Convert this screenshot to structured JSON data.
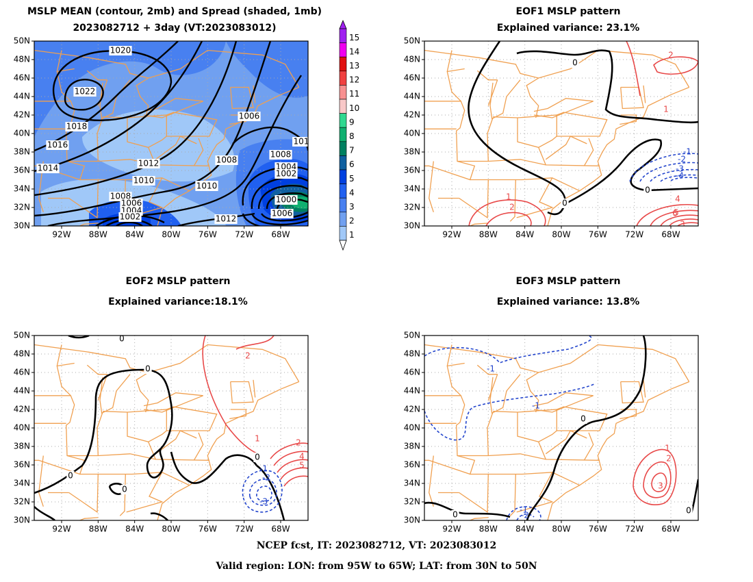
{
  "colors": {
    "coast": "#f0a050",
    "grid": "#aaaaaa",
    "positive": "#e84848",
    "negative": "#2244cc",
    "zero": "#000000"
  },
  "axes": {
    "lat_labels": [
      "50N",
      "48N",
      "46N",
      "44N",
      "42N",
      "40N",
      "38N",
      "36N",
      "34N",
      "32N",
      "30N"
    ],
    "lon_labels": [
      "92W",
      "88W",
      "84W",
      "80W",
      "76W",
      "72W",
      "68W"
    ]
  },
  "panels": {
    "mean": {
      "title": "MSLP MEAN (contour, 2mb) and Spread (shaded, 1mb)",
      "subtitle": "2023082712 + 3day (VT:2023083012)",
      "contour_labels": [
        "1020",
        "1022",
        "1018",
        "1016",
        "1014",
        "1012",
        "1010",
        "1008",
        "1006",
        "1004",
        "1002",
        "1006",
        "1012",
        "1010",
        "1008",
        "1006",
        "1008",
        "1004",
        "1002",
        "1000",
        "1006",
        "101"
      ]
    },
    "eof1": {
      "title": "EOF1 MSLP pattern",
      "subtitle": "Explained variance: 23.1%",
      "labels": [
        "0",
        "0",
        "0",
        "0",
        "2",
        "1",
        "-1",
        "-2",
        "-3",
        "-4",
        "2",
        "1",
        "4",
        "5",
        "6",
        "3"
      ]
    },
    "eof2": {
      "title": "EOF2 MSLP pattern",
      "subtitle": "Explained variance:18.1%",
      "labels": [
        "0",
        "0",
        "0",
        "0",
        "0",
        "2",
        "1",
        "2",
        "4",
        "5",
        "-1",
        "-2",
        "-3"
      ]
    },
    "eof3": {
      "title": "EOF3 MSLP pattern",
      "subtitle": "Explained variance: 13.8%",
      "labels": [
        "-1",
        "-1",
        "0",
        "0",
        "0",
        "-1",
        "-2",
        "1",
        "2",
        "3"
      ]
    }
  },
  "colorbar": {
    "labels": [
      "15",
      "14",
      "13",
      "12",
      "11",
      "10",
      "9",
      "8",
      "7",
      "6",
      "5",
      "4",
      "3",
      "2",
      "1"
    ],
    "colors": [
      "#a020f0",
      "#f000f0",
      "#e01010",
      "#f04040",
      "#f89090",
      "#f8c8c8",
      "#30d890",
      "#10b070",
      "#008060",
      "#1060a0",
      "#0040e0",
      "#2060f0",
      "#4880f0",
      "#70a0f0",
      "#a0c8f8"
    ]
  },
  "footer": {
    "line1": "NCEP fcst, IT: 2023082712, VT: 2023083012",
    "line2": "Valid region: LON: from 95W to 65W; LAT: from 30N to 50N"
  }
}
